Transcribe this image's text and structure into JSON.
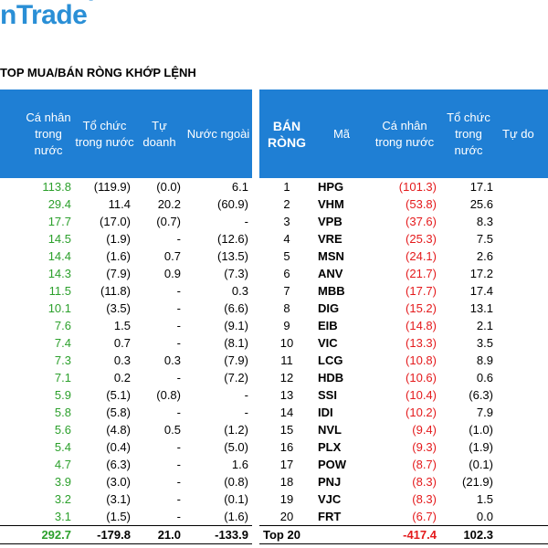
{
  "brand": {
    "logo_text": "nTrade",
    "logo_mark": "®"
  },
  "title": "TOP MUA/BÁN RÒNG KHỚP LỆNH",
  "left_table": {
    "headers": [
      "Cá nhân trong nước",
      "Tổ chức trong nước",
      "Tự doanh",
      "Nước ngoài"
    ],
    "rows": [
      [
        "113.8",
        "(119.9)",
        "(0.0)",
        "6.1"
      ],
      [
        "29.4",
        "11.4",
        "20.2",
        "(60.9)"
      ],
      [
        "17.7",
        "(17.0)",
        "(0.7)",
        "-"
      ],
      [
        "14.5",
        "(1.9)",
        "-",
        "(12.6)"
      ],
      [
        "14.4",
        "(1.6)",
        "0.7",
        "(13.5)"
      ],
      [
        "14.3",
        "(7.9)",
        "0.9",
        "(7.3)"
      ],
      [
        "11.5",
        "(11.8)",
        "-",
        "0.3"
      ],
      [
        "10.1",
        "(3.5)",
        "-",
        "(6.6)"
      ],
      [
        "7.6",
        "1.5",
        "-",
        "(9.1)"
      ],
      [
        "7.4",
        "0.7",
        "-",
        "(8.1)"
      ],
      [
        "7.3",
        "0.3",
        "0.3",
        "(7.9)"
      ],
      [
        "7.1",
        "0.2",
        "-",
        "(7.2)"
      ],
      [
        "5.9",
        "(5.1)",
        "(0.8)",
        "-"
      ],
      [
        "5.8",
        "(5.8)",
        "-",
        "-"
      ],
      [
        "5.6",
        "(4.8)",
        "0.5",
        "(1.2)"
      ],
      [
        "5.4",
        "(0.4)",
        "-",
        "(5.0)"
      ],
      [
        "4.7",
        "(6.3)",
        "-",
        "1.6"
      ],
      [
        "3.9",
        "(3.0)",
        "-",
        "(0.8)"
      ],
      [
        "3.2",
        "(3.1)",
        "-",
        "(0.1)"
      ],
      [
        "3.1",
        "(1.5)",
        "-",
        "(1.6)"
      ]
    ],
    "total": [
      "292.7",
      "-179.8",
      "21.0",
      "-133.9"
    ]
  },
  "right_table": {
    "headers": [
      "BÁN RÒNG",
      "Mã",
      "Cá nhân trong nước",
      "Tổ chức trong nước",
      "Tự do"
    ],
    "rows": [
      [
        "1",
        "HPG",
        "(101.3)",
        "17.1"
      ],
      [
        "2",
        "VHM",
        "(53.8)",
        "25.6"
      ],
      [
        "3",
        "VPB",
        "(37.6)",
        "8.3"
      ],
      [
        "4",
        "VRE",
        "(25.3)",
        "7.5"
      ],
      [
        "5",
        "MSN",
        "(24.1)",
        "2.6"
      ],
      [
        "6",
        "ANV",
        "(21.7)",
        "17.2"
      ],
      [
        "7",
        "MBB",
        "(17.7)",
        "17.4"
      ],
      [
        "8",
        "DIG",
        "(15.2)",
        "13.1"
      ],
      [
        "9",
        "EIB",
        "(14.8)",
        "2.1"
      ],
      [
        "10",
        "VIC",
        "(13.3)",
        "3.5"
      ],
      [
        "11",
        "LCG",
        "(10.8)",
        "8.9"
      ],
      [
        "12",
        "HDB",
        "(10.6)",
        "0.6"
      ],
      [
        "13",
        "SSI",
        "(10.4)",
        "(6.3)"
      ],
      [
        "14",
        "IDI",
        "(10.2)",
        "7.9"
      ],
      [
        "15",
        "NVL",
        "(9.4)",
        "(1.0)"
      ],
      [
        "16",
        "PLX",
        "(9.3)",
        "(1.9)"
      ],
      [
        "17",
        "POW",
        "(8.7)",
        "(0.1)"
      ],
      [
        "18",
        "PNJ",
        "(8.3)",
        "(21.9)"
      ],
      [
        "19",
        "VJC",
        "(8.3)",
        "1.5"
      ],
      [
        "20",
        "FRT",
        "(6.7)",
        "0.0"
      ]
    ],
    "total": [
      "Top 20",
      "",
      "-417.4",
      "102.3"
    ]
  },
  "colors": {
    "header_bg": "#1f7fd4",
    "positive": "#2ca02c",
    "negative": "#e41a1c",
    "logo": "#2a8fd6"
  }
}
